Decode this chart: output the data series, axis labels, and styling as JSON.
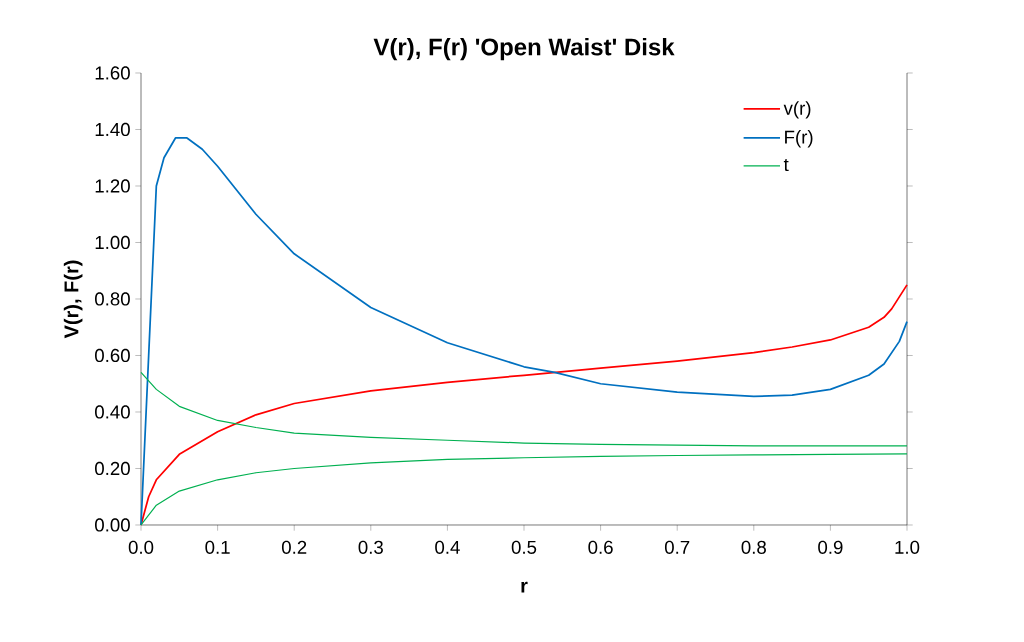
{
  "chart_data": {
    "type": "line",
    "title": "V(r), F(r) 'Open Waist' Disk",
    "xlabel": "r",
    "ylabel": "V(r), F(r)",
    "xlim": [
      0,
      1
    ],
    "ylim": [
      0,
      1.6
    ],
    "xticks": [
      {
        "value": 0,
        "label": "0.0"
      },
      {
        "value": 0.1,
        "label": "0.1"
      },
      {
        "value": 0.2,
        "label": "0.2"
      },
      {
        "value": 0.3,
        "label": "0.3"
      },
      {
        "value": 0.4,
        "label": "0.4"
      },
      {
        "value": 0.5,
        "label": "0.5"
      },
      {
        "value": 0.6,
        "label": "0.6"
      },
      {
        "value": 0.7,
        "label": "0.7"
      },
      {
        "value": 0.8,
        "label": "0.8"
      },
      {
        "value": 0.9,
        "label": "0.9"
      },
      {
        "value": 1,
        "label": "1.0"
      }
    ],
    "yticks": [
      {
        "value": 0,
        "label": "0.00"
      },
      {
        "value": 0.2,
        "label": "0.20"
      },
      {
        "value": 0.4,
        "label": "0.40"
      },
      {
        "value": 0.6,
        "label": "0.60"
      },
      {
        "value": 0.8,
        "label": "0.80"
      },
      {
        "value": 1,
        "label": "1.00"
      },
      {
        "value": 1.2,
        "label": "1.20"
      },
      {
        "value": 1.4,
        "label": "1.40"
      },
      {
        "value": 1.6,
        "label": "1.60"
      }
    ],
    "grid": false,
    "legend": "top right",
    "marker": "none",
    "line_style": "solid",
    "series": [
      {
        "name": "v(r)",
        "color": "#ff0000",
        "x": [
          0,
          0.01,
          0.02,
          0.05,
          0.1,
          0.15,
          0.2,
          0.3,
          0.4,
          0.5,
          0.6,
          0.7,
          0.8,
          0.85,
          0.9,
          0.95,
          0.97,
          0.98,
          1.0
        ],
        "values": [
          0,
          0.1,
          0.16,
          0.25,
          0.33,
          0.39,
          0.43,
          0.475,
          0.505,
          0.53,
          0.555,
          0.58,
          0.61,
          0.63,
          0.655,
          0.7,
          0.735,
          0.765,
          0.85
        ]
      },
      {
        "name": "F(r)",
        "color": "#0070c0",
        "x": [
          0,
          0.01,
          0.02,
          0.03,
          0.045,
          0.06,
          0.08,
          0.1,
          0.15,
          0.2,
          0.3,
          0.4,
          0.5,
          0.54,
          0.6,
          0.7,
          0.8,
          0.85,
          0.9,
          0.95,
          0.97,
          0.99,
          1.0
        ],
        "values": [
          0,
          0.6,
          1.2,
          1.3,
          1.37,
          1.37,
          1.33,
          1.27,
          1.1,
          0.96,
          0.77,
          0.645,
          0.56,
          0.54,
          0.5,
          0.47,
          0.455,
          0.46,
          0.48,
          0.53,
          0.57,
          0.65,
          0.72
        ]
      },
      {
        "name": "t",
        "color": "#00b050",
        "x": [
          0,
          0.02,
          0.05,
          0.1,
          0.15,
          0.2,
          0.3,
          0.4,
          0.5,
          0.6,
          0.7,
          0.8,
          0.9,
          1.0
        ],
        "values": [
          0.54,
          0.48,
          0.42,
          0.37,
          0.345,
          0.325,
          0.31,
          0.3,
          0.29,
          0.285,
          0.283,
          0.28,
          0.28,
          0.28
        ]
      },
      {
        "color": "#00b050",
        "x": [
          0,
          0.02,
          0.05,
          0.1,
          0.15,
          0.2,
          0.3,
          0.4,
          0.5,
          0.6,
          0.7,
          0.8,
          0.9,
          1.0
        ],
        "values": [
          0,
          0.07,
          0.12,
          0.16,
          0.185,
          0.2,
          0.22,
          0.232,
          0.238,
          0.243,
          0.246,
          0.248,
          0.25,
          0.252
        ]
      }
    ]
  }
}
